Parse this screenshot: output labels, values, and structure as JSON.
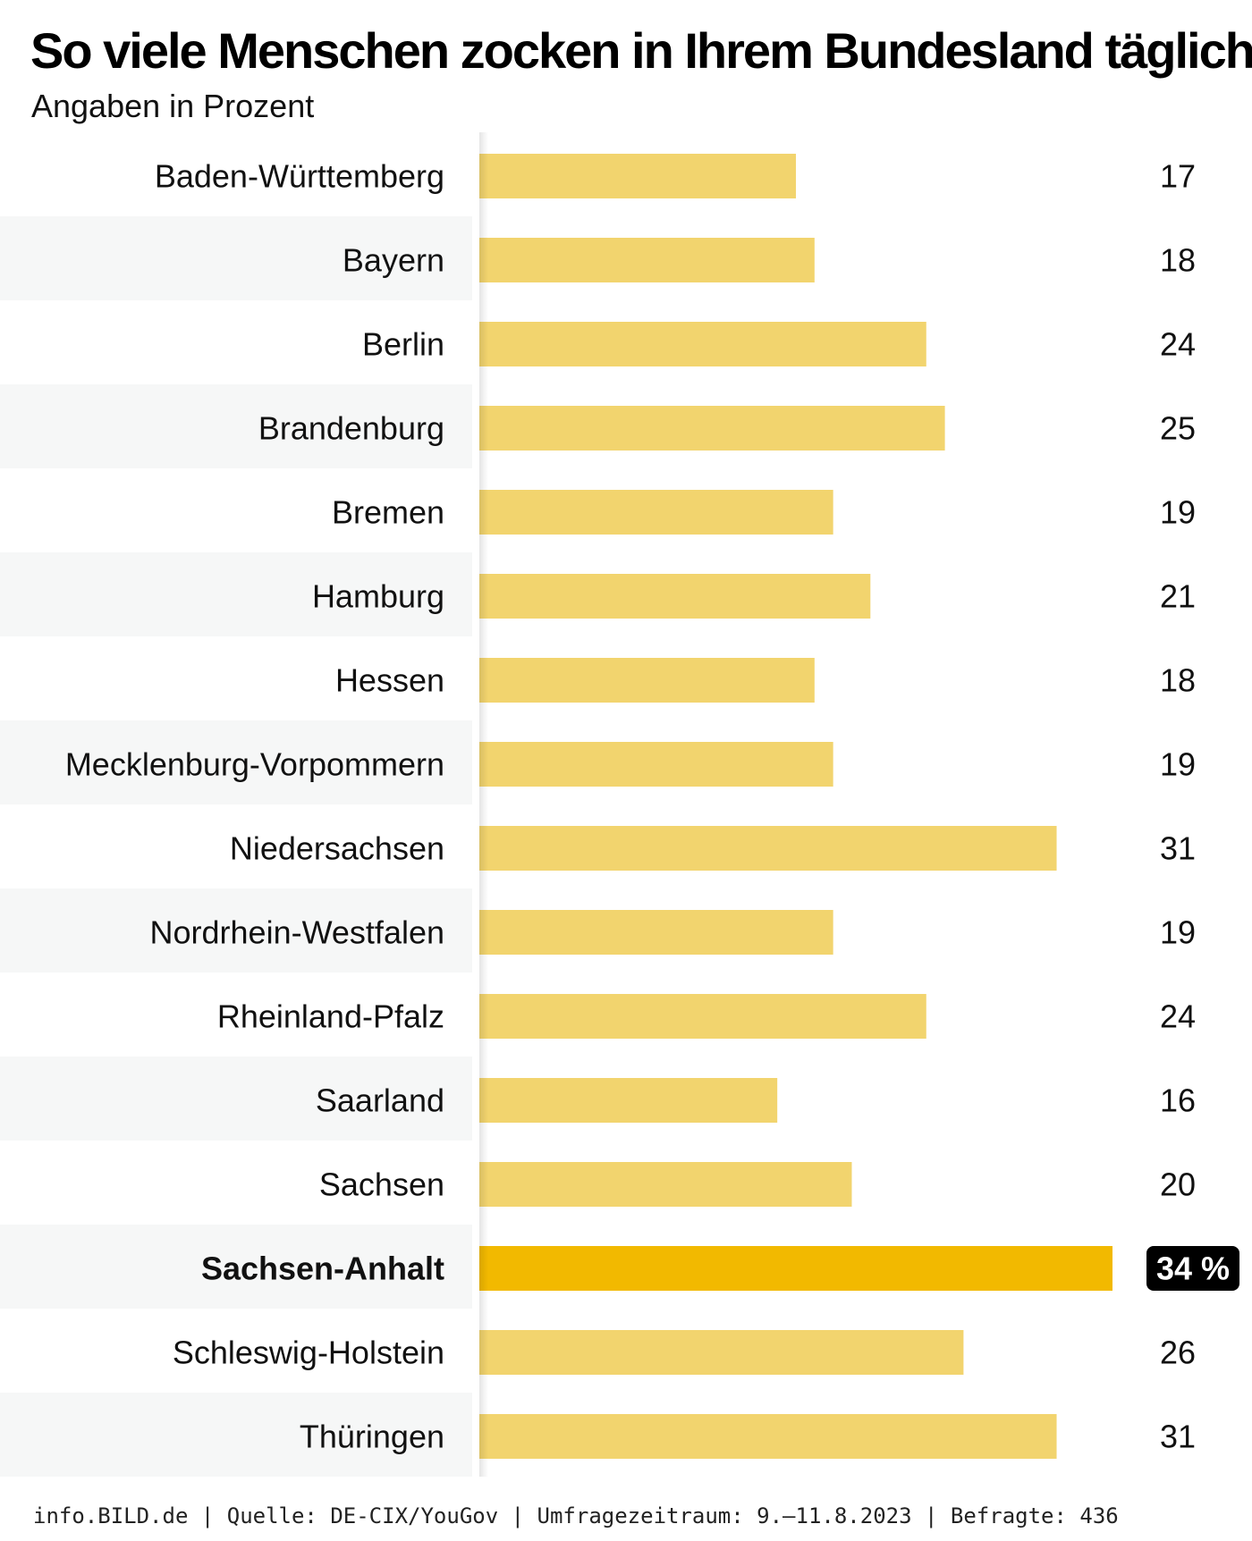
{
  "title": "So viele Menschen zocken in Ihrem Bundesland täglich",
  "subtitle": "Angaben in Prozent",
  "footer": "info.BILD.de | Quelle: DE-CIX/YouGov | Umfragezeitraum: 9.–11.8.2023 | Befragte: 436",
  "colors": {
    "bar": "#F2D46E",
    "bar_highlight": "#F2B900",
    "row_stripe": "#F6F7F7",
    "badge_bg": "#000000",
    "badge_text": "#FFFFFF",
    "text": "#111111"
  },
  "chart_data": {
    "type": "bar",
    "orientation": "horizontal",
    "title": "So viele Menschen zocken in Ihrem Bundesland täglich",
    "subtitle": "Angaben in Prozent",
    "categories": [
      "Baden-Württemberg",
      "Bayern",
      "Berlin",
      "Brandenburg",
      "Bremen",
      "Hamburg",
      "Hessen",
      "Mecklenburg-Vorpommern",
      "Niedersachsen",
      "Nordrhein-Westfalen",
      "Rheinland-Pfalz",
      "Saarland",
      "Sachsen",
      "Sachsen-Anhalt",
      "Schleswig-Holstein",
      "Thüringen"
    ],
    "values": [
      17,
      18,
      24,
      25,
      19,
      21,
      18,
      19,
      31,
      19,
      24,
      16,
      20,
      34,
      26,
      31
    ],
    "value_labels": [
      "17",
      "18",
      "24",
      "25",
      "19",
      "21",
      "18",
      "19",
      "31",
      "19",
      "24",
      "16",
      "20",
      "34 %",
      "26",
      "31"
    ],
    "highlight": "Sachsen-Anhalt",
    "xlim": [
      0,
      34
    ],
    "grid": false,
    "legend": "none"
  }
}
